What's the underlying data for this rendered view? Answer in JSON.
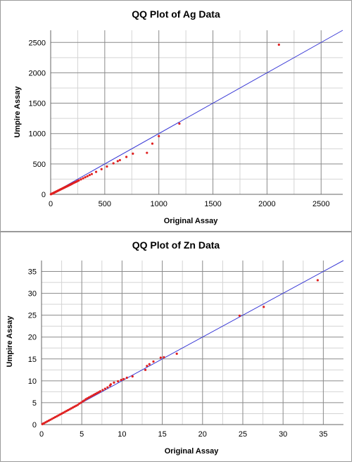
{
  "chart_data": [
    {
      "type": "scatter",
      "title": "QQ Plot of Ag Data",
      "xlabel": "Original Assay",
      "ylabel": "Umpire Assay",
      "xlim": [
        0,
        2700
      ],
      "ylim": [
        0,
        2700
      ],
      "xticks": [
        0,
        500,
        1000,
        1500,
        2000,
        2500
      ],
      "yticks": [
        0,
        500,
        1000,
        1500,
        2000,
        2500
      ],
      "grid": true,
      "line": {
        "x": [
          0,
          2700
        ],
        "y": [
          0,
          2700
        ],
        "color": "#3b3bd6"
      },
      "point_color": "#e02020",
      "series": [
        {
          "x": [
            2,
            5,
            8,
            12,
            16,
            20,
            25,
            30,
            35,
            40,
            45,
            50,
            55,
            60,
            65,
            70,
            75,
            80,
            85,
            90,
            95,
            100,
            105,
            110,
            115,
            120,
            125,
            130,
            135,
            140,
            145,
            150,
            155,
            160,
            165,
            170,
            175,
            180,
            185,
            190,
            195,
            200,
            210,
            220,
            230,
            240,
            250,
            260,
            280,
            300,
            320,
            340,
            360,
            380,
            420,
            470,
            520,
            580,
            620,
            640,
            700,
            760,
            890,
            940,
            1000,
            1190,
            2110
          ],
          "y": [
            2,
            4,
            7,
            10,
            14,
            18,
            22,
            26,
            31,
            35,
            40,
            44,
            48,
            53,
            57,
            62,
            66,
            70,
            75,
            79,
            84,
            88,
            92,
            97,
            101,
            106,
            110,
            114,
            119,
            123,
            128,
            132,
            136,
            141,
            145,
            150,
            154,
            158,
            163,
            167,
            172,
            176,
            185,
            194,
            202,
            211,
            220,
            229,
            246,
            264,
            282,
            299,
            317,
            334,
            370,
            414,
            458,
            510,
            546,
            563,
            616,
            669,
            683,
            834,
            958,
            1163,
            2463
          ]
        }
      ]
    },
    {
      "type": "scatter",
      "title": "QQ Plot of Zn Data",
      "xlabel": "Original Assay",
      "ylabel": "Umpire Assay",
      "xlim": [
        0,
        37.5
      ],
      "ylim": [
        0,
        37.5
      ],
      "xticks": [
        0,
        5,
        10,
        15,
        20,
        25,
        30,
        35
      ],
      "yticks": [
        0,
        5,
        10,
        15,
        20,
        25,
        30,
        35
      ],
      "grid": true,
      "line": {
        "x": [
          0,
          37.5
        ],
        "y": [
          0,
          37.5
        ],
        "color": "#3b3bd6"
      },
      "point_color": "#e02020",
      "series": [
        {
          "x": [
            0.1,
            0.2,
            0.3,
            0.5,
            0.7,
            0.9,
            1.1,
            1.3,
            1.5,
            1.7,
            1.9,
            2.1,
            2.3,
            2.5,
            2.7,
            2.9,
            3.1,
            3.3,
            3.5,
            3.7,
            3.9,
            4.1,
            4.3,
            4.5,
            4.7,
            4.9,
            5.1,
            5.3,
            5.5,
            5.7,
            5.9,
            6.1,
            6.3,
            6.5,
            6.7,
            6.9,
            7.1,
            7.3,
            7.6,
            7.9,
            8.2,
            8.5,
            8.6,
            9.0,
            9.5,
            9.9,
            10.2,
            10.6,
            11.3,
            12.9,
            13.1,
            13.4,
            13.9,
            14.8,
            15.2,
            16.8,
            24.6,
            27.6,
            34.3
          ],
          "y": [
            0.1,
            0.2,
            0.3,
            0.5,
            0.7,
            0.9,
            1.1,
            1.3,
            1.5,
            1.7,
            1.9,
            2.1,
            2.3,
            2.5,
            2.7,
            2.9,
            3.1,
            3.3,
            3.5,
            3.7,
            3.9,
            4.1,
            4.3,
            4.5,
            4.8,
            5.0,
            5.3,
            5.5,
            5.8,
            6.0,
            6.2,
            6.4,
            6.6,
            6.8,
            7.0,
            7.2,
            7.4,
            7.6,
            7.9,
            8.2,
            8.5,
            8.9,
            9.2,
            9.6,
            9.9,
            10.2,
            10.4,
            10.7,
            11.0,
            12.5,
            13.4,
            13.8,
            14.4,
            15.3,
            15.4,
            16.2,
            24.9,
            26.9,
            33.0
          ]
        }
      ]
    }
  ]
}
